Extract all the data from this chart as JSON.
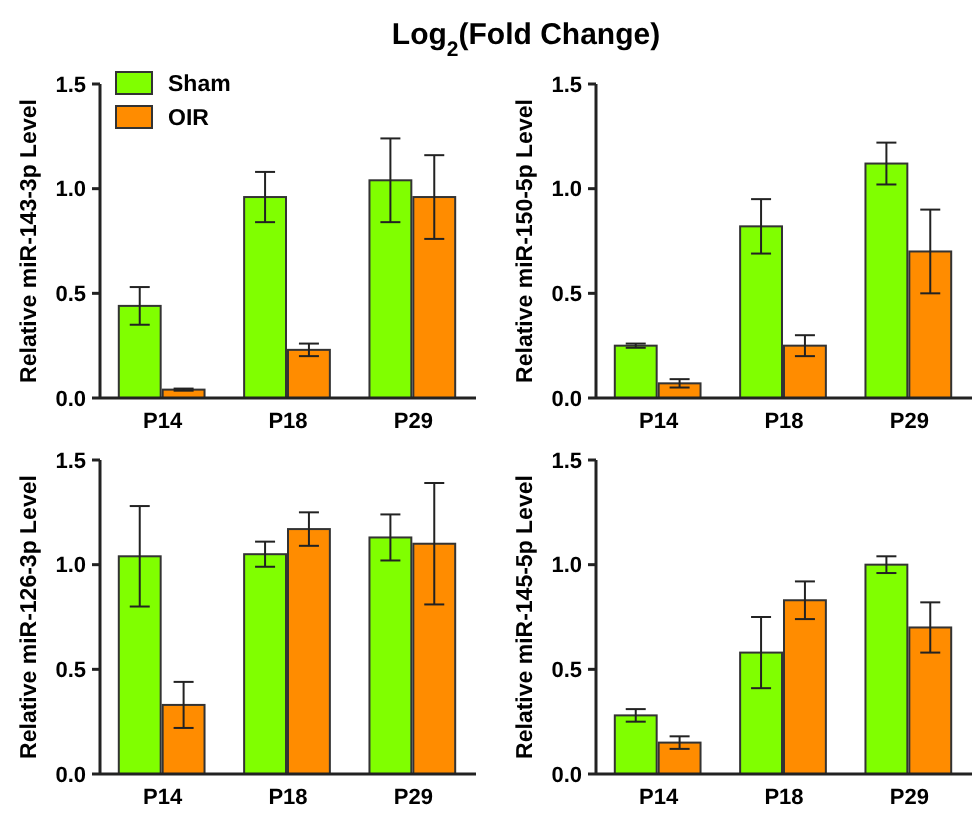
{
  "chart_data": [
    {
      "type": "bar",
      "title": "Log$_{2}$(Fold Change)",
      "ylabel": "Relative miR-143-3p Level",
      "categories": [
        "P14",
        "P18",
        "P29"
      ],
      "ylim": [
        0,
        1.5
      ],
      "yticks": [
        {
          "value": 0,
          "label": "0.0"
        },
        {
          "value": 0.5,
          "label": "0.5"
        },
        {
          "value": 1,
          "label": "1.0"
        },
        {
          "value": 1.5,
          "label": "1.5"
        }
      ],
      "legend": "top left",
      "grid": false,
      "series": [
        {
          "name": "Sham",
          "color": "#80ff00",
          "values": [
            0.44,
            0.96,
            1.04
          ],
          "errors": [
            0.09,
            0.12,
            0.2
          ]
        },
        {
          "name": "OIR",
          "color": "#ff8c00",
          "values": [
            0.04,
            0.23,
            0.96
          ],
          "errors": [
            0.005,
            0.03,
            0.2
          ]
        }
      ]
    },
    {
      "type": "bar",
      "ylabel": "Relative miR-150-5p Level",
      "categories": [
        "P14",
        "P18",
        "P29"
      ],
      "ylim": [
        0,
        1.5
      ],
      "yticks": [
        {
          "value": 0,
          "label": "0.0"
        },
        {
          "value": 0.5,
          "label": "0.5"
        },
        {
          "value": 1,
          "label": "1.0"
        },
        {
          "value": 1.5,
          "label": "1.5"
        }
      ],
      "grid": false,
      "series": [
        {
          "color": "#80ff00",
          "values": [
            0.25,
            0.82,
            1.12
          ],
          "errors": [
            0.01,
            0.13,
            0.1
          ]
        },
        {
          "color": "#ff8c00",
          "values": [
            0.07,
            0.25,
            0.7
          ],
          "errors": [
            0.02,
            0.05,
            0.2
          ]
        }
      ]
    },
    {
      "type": "bar",
      "ylabel": "Relative miR-126-3p Level",
      "categories": [
        "P14",
        "P18",
        "P29"
      ],
      "ylim": [
        0,
        1.5
      ],
      "yticks": [
        {
          "value": 0,
          "label": "0.0"
        },
        {
          "value": 0.5,
          "label": "0.5"
        },
        {
          "value": 1,
          "label": "1.0"
        },
        {
          "value": 1.5,
          "label": "1.5"
        }
      ],
      "grid": false,
      "series": [
        {
          "color": "#80ff00",
          "values": [
            1.04,
            1.05,
            1.13
          ],
          "errors": [
            0.24,
            0.06,
            0.11
          ]
        },
        {
          "color": "#ff8c00",
          "values": [
            0.33,
            1.17,
            1.1
          ],
          "errors": [
            0.11,
            0.08,
            0.29
          ]
        }
      ]
    },
    {
      "type": "bar",
      "ylabel": "Relative miR-145-5p Level",
      "categories": [
        "P14",
        "P18",
        "P29"
      ],
      "ylim": [
        0,
        1.5
      ],
      "yticks": [
        {
          "value": 0,
          "label": "0.0"
        },
        {
          "value": 0.5,
          "label": "0.5"
        },
        {
          "value": 1,
          "label": "1.0"
        },
        {
          "value": 1.5,
          "label": "1.5"
        }
      ],
      "grid": false,
      "series": [
        {
          "color": "#80ff00",
          "values": [
            0.28,
            0.58,
            1.0
          ],
          "errors": [
            0.03,
            0.17,
            0.04
          ]
        },
        {
          "color": "#ff8c00",
          "values": [
            0.15,
            0.83,
            0.7
          ],
          "errors": [
            0.03,
            0.09,
            0.12
          ]
        }
      ]
    }
  ]
}
